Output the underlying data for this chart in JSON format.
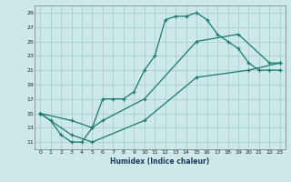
{
  "xlabel": "Humidex (Indice chaleur)",
  "bg_color": "#cce8e8",
  "line_color": "#1a7a6e",
  "grid_color": "#aacfcf",
  "xlim": [
    -0.5,
    23.5
  ],
  "ylim": [
    10,
    30
  ],
  "yticks": [
    11,
    13,
    15,
    17,
    19,
    21,
    23,
    25,
    27,
    29
  ],
  "xticks": [
    0,
    1,
    2,
    3,
    4,
    5,
    6,
    7,
    8,
    9,
    10,
    11,
    12,
    13,
    14,
    15,
    16,
    17,
    18,
    19,
    20,
    21,
    22,
    23
  ],
  "series1_x": [
    0,
    1,
    2,
    3,
    4,
    5,
    6,
    7,
    8,
    9,
    10,
    11,
    12,
    13,
    14,
    15,
    16,
    17,
    18,
    19,
    20,
    21,
    22,
    23
  ],
  "series1_y": [
    15,
    14,
    12,
    11,
    11,
    13,
    17,
    17,
    17,
    18,
    21,
    23,
    28,
    28.5,
    28.5,
    29,
    28,
    26,
    25,
    24,
    22,
    21,
    21,
    21
  ],
  "series2_x": [
    0,
    3,
    5,
    6,
    10,
    15,
    19,
    22,
    23
  ],
  "series2_y": [
    15,
    14,
    13,
    14,
    17,
    25,
    26,
    22,
    22
  ],
  "series3_x": [
    0,
    3,
    5,
    10,
    15,
    20,
    23
  ],
  "series3_y": [
    15,
    12,
    11,
    14,
    20,
    21,
    22
  ]
}
